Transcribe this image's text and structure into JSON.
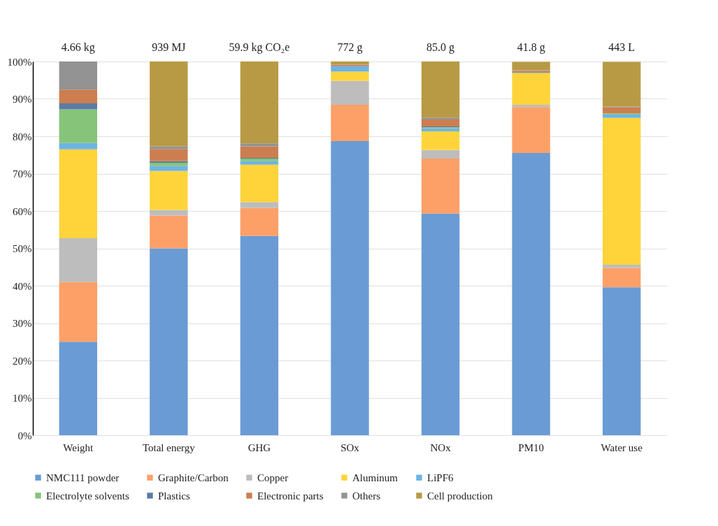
{
  "chart_data": {
    "type": "bar",
    "stacked": true,
    "categories": [
      "Weight",
      "Total energy",
      "GHG",
      "SOx",
      "NOx",
      "PM10",
      "Water use"
    ],
    "annotations": [
      {
        "text": "4.66 kg",
        "x": "Weight",
        "y": 100
      },
      {
        "text": "939 MJ",
        "x": "Total energy",
        "y": 100
      },
      {
        "text": "59.9 kg CO₂e",
        "x": "GHG",
        "y": 100
      },
      {
        "text": "772 g",
        "x": "SOx",
        "y": 100
      },
      {
        "text": "85.0 g",
        "x": "NOx",
        "y": 100
      },
      {
        "text": "41.8 g",
        "x": "PM10",
        "y": 100
      },
      {
        "text": "443 L",
        "x": "Water use",
        "y": 100
      }
    ],
    "ylim": [
      0,
      100
    ],
    "yticks": [
      {
        "value": 0,
        "label": "0%"
      },
      {
        "value": 10,
        "label": "10%"
      },
      {
        "value": 20,
        "label": "20%"
      },
      {
        "value": 30,
        "label": "30%"
      },
      {
        "value": 40,
        "label": "40%"
      },
      {
        "value": 50,
        "label": "50%"
      },
      {
        "value": 60,
        "label": "60%"
      },
      {
        "value": 70,
        "label": "70%"
      },
      {
        "value": 80,
        "label": "80%"
      },
      {
        "value": 90,
        "label": "90%"
      },
      {
        "value": 100,
        "label": "100%"
      }
    ],
    "grid": "y",
    "legend": "bottom",
    "series": [
      {
        "name": "NMC111 powder",
        "color": "#6a9bd4",
        "values": [
          25,
          50,
          53.3,
          78.7,
          59.3,
          75.5,
          39.6
        ]
      },
      {
        "name": "Graphite/Carbon",
        "color": "#fca068",
        "values": [
          16,
          8.8,
          7.5,
          9.7,
          14.7,
          12.3,
          5.1
        ]
      },
      {
        "name": "Copper",
        "color": "#bdbdbd",
        "values": [
          11.7,
          1.5,
          1.6,
          6.4,
          2.3,
          0.6,
          0.9
        ]
      },
      {
        "name": "Aluminum",
        "color": "#ffd43b",
        "values": [
          23.8,
          10.4,
          10,
          2.5,
          5,
          8.4,
          39.3
        ]
      },
      {
        "name": "LiPF6",
        "color": "#6cb4e4",
        "values": [
          1.7,
          1.3,
          0.9,
          1.3,
          0.8,
          0.1,
          0.9
        ]
      },
      {
        "name": "Electrolyte solvents",
        "color": "#86c47a",
        "values": [
          9,
          0.9,
          0.7,
          0,
          0.3,
          0.1,
          0.3
        ]
      },
      {
        "name": "Plastics",
        "color": "#5a7ca6",
        "values": [
          1.6,
          0.4,
          0.2,
          0.2,
          0.2,
          null,
          null
        ]
      },
      {
        "name": "Electronic parts",
        "color": "#cc7e50",
        "values": [
          3.7,
          3.3,
          3.1,
          0.3,
          1.9,
          0.5,
          1.6
        ]
      },
      {
        "name": "Others",
        "color": "#939393",
        "values": [
          7.5,
          0.7,
          0.8,
          0.1,
          0.5,
          0.2,
          0.2
        ]
      },
      {
        "name": "Cell production",
        "color": "#b89a45",
        "values": [
          0,
          22.7,
          21.9,
          0.8,
          15,
          2.2,
          12
        ]
      }
    ]
  }
}
